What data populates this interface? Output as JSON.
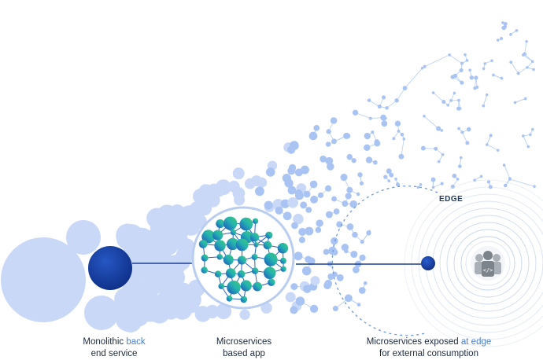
{
  "captions": {
    "monolith": {
      "line1_dark": "Monolithic ",
      "line1_accent": "back",
      "line2": "end service"
    },
    "microservices": {
      "line1": "Microservices",
      "line2": "based app"
    },
    "edge": {
      "line1_dark": "Microservices exposed ",
      "line1_accent": "at edge",
      "line2": "for external consumption"
    }
  },
  "edge_label": "EDGE",
  "colors": {
    "bubble_light": "#c9d8f7",
    "node_light": "#a9c4f2",
    "link_light": "#b5cdf3",
    "core_dark": "#133c9e",
    "gradient_blue": "#1e5fc7",
    "gradient_teal": "#22b7a9",
    "gradient_green": "#3ec77a",
    "edge_dash": "#6f97dd",
    "ripple": "#c2d2ea",
    "consumer_icon_bg": "#8a8f96"
  },
  "icons": {
    "consumers": "users-code-icon"
  }
}
